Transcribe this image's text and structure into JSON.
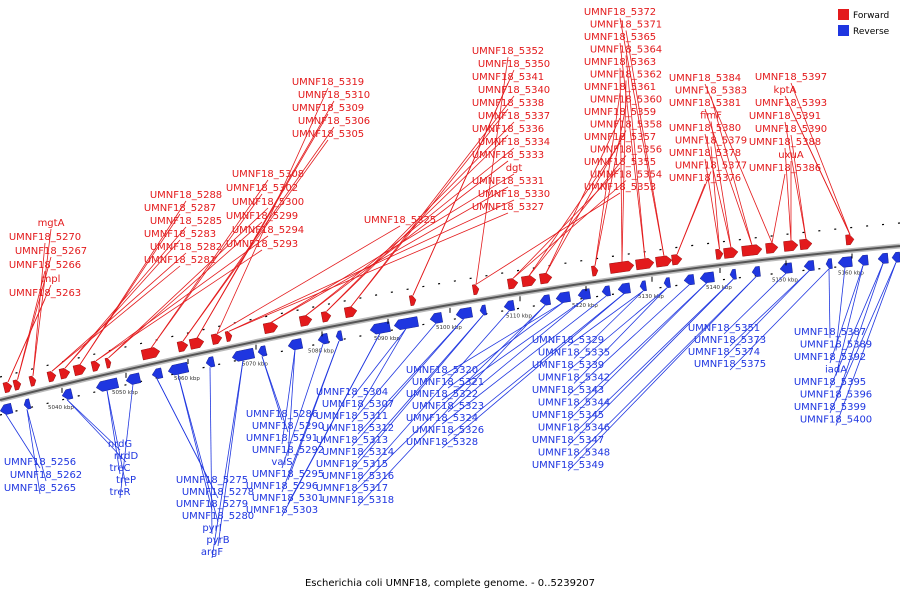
{
  "legend": {
    "forward_label": "Forward",
    "reverse_label": "Reverse",
    "forward_color": "#e31a1c",
    "reverse_color": "#1f36e0"
  },
  "caption": "Escherichia coli UMNF18, complete genome. - 0..5239207",
  "colors": {
    "forward": "#e31a1c",
    "reverse": "#1f36e0",
    "backbone": "#555555",
    "tick": "#000000"
  },
  "ticks": [
    "5040 kbp",
    "5050 kbp",
    "5060 kbp",
    "5070 kbp",
    "5080 kbp",
    "5090 kbp",
    "5100 kbp",
    "5110 kbp",
    "5120 kbp",
    "5130 kbp",
    "5140 kbp",
    "5150 kbp",
    "5160 kbp"
  ],
  "forward_labels": [
    "UMNF18_5263",
    "mpl",
    "UMNF18_5266",
    "UMNF18_5267",
    "UMNF18_5270",
    "mgtA",
    "UMNF18_5281",
    "UMNF18_5282",
    "UMNF18_5283",
    "UMNF18_5285",
    "UMNF18_5287",
    "UMNF18_5288",
    "UMNF18_5293",
    "UMNF18_5294",
    "UMNF18_5299",
    "UMNF18_5300",
    "UMNF18_5302",
    "UMNF18_5308",
    "UMNF18_5305",
    "UMNF18_5306",
    "UMNF18_5309",
    "UMNF18_5310",
    "UMNF18_5319",
    "UMNF18_5325",
    "UMNF18_5327",
    "UMNF18_5330",
    "UMNF18_5331",
    "dgt",
    "UMNF18_5333",
    "UMNF18_5334",
    "UMNF18_5336",
    "UMNF18_5337",
    "UMNF18_5338",
    "UMNF18_5340",
    "UMNF18_5341",
    "UMNF18_5350",
    "UMNF18_5352",
    "UMNF18_5353",
    "UMNF18_5354",
    "UMNF18_5355",
    "UMNF18_5356",
    "UMNF18_5357",
    "UMNF18_5358",
    "UMNF18_5359",
    "UMNF18_5360",
    "UMNF18_5361",
    "UMNF18_5362",
    "UMNF18_5363",
    "UMNF18_5364",
    "UMNF18_5365",
    "UMNF18_5371",
    "UMNF18_5372",
    "UMNF18_5376",
    "UMNF18_5377",
    "UMNF18_5378",
    "UMNF18_5379",
    "UMNF18_5380",
    "fimF",
    "UMNF18_5381",
    "UMNF18_5383",
    "UMNF18_5384",
    "UMNF18_5386",
    "uxuA",
    "UMNF18_5388",
    "UMNF18_5390",
    "UMNF18_5391",
    "UMNF18_5393",
    "kptA",
    "UMNF18_5397"
  ],
  "reverse_labels": [
    "UMNF18_5256",
    "UMNF18_5262",
    "UMNF18_5265",
    "nrdG",
    "nrdD",
    "treC",
    "treP",
    "treR",
    "UMNF18_5275",
    "UMNF18_5278",
    "UMNF18_5279",
    "UMNF18_5280",
    "pyrI",
    "pyrB",
    "argF",
    "UMNF18_5286",
    "UMNF18_5290",
    "UMNF18_5291",
    "UMNF18_5292",
    "valS",
    "UMNF18_5295",
    "UMNF18_5296",
    "UMNF18_5301",
    "UMNF18_5303",
    "UMNF18_5304",
    "UMNF18_5307",
    "UMNF18_5311",
    "UMNF18_5312",
    "UMNF18_5313",
    "UMNF18_5314",
    "UMNF18_5315",
    "UMNF18_5316",
    "UMNF18_5317",
    "UMNF18_5318",
    "UMNF18_5320",
    "UMNF18_5321",
    "UMNF18_5322",
    "UMNF18_5323",
    "UMNF18_5324",
    "UMNF18_5326",
    "UMNF18_5328",
    "UMNF18_5329",
    "UMNF18_5335",
    "UMNF18_5339",
    "UMNF18_5342",
    "UMNF18_5343",
    "UMNF18_5344",
    "UMNF18_5345",
    "UMNF18_5346",
    "UMNF18_5347",
    "UMNF18_5348",
    "UMNF18_5349",
    "UMNF18_5351",
    "UMNF18_5373",
    "UMNF18_5374",
    "UMNF18_5375",
    "UMNF18_5387",
    "UMNF18_5389",
    "UMNF18_5392",
    "iadA",
    "UMNF18_5395",
    "UMNF18_5396",
    "UMNF18_5399",
    "UMNF18_5400"
  ]
}
